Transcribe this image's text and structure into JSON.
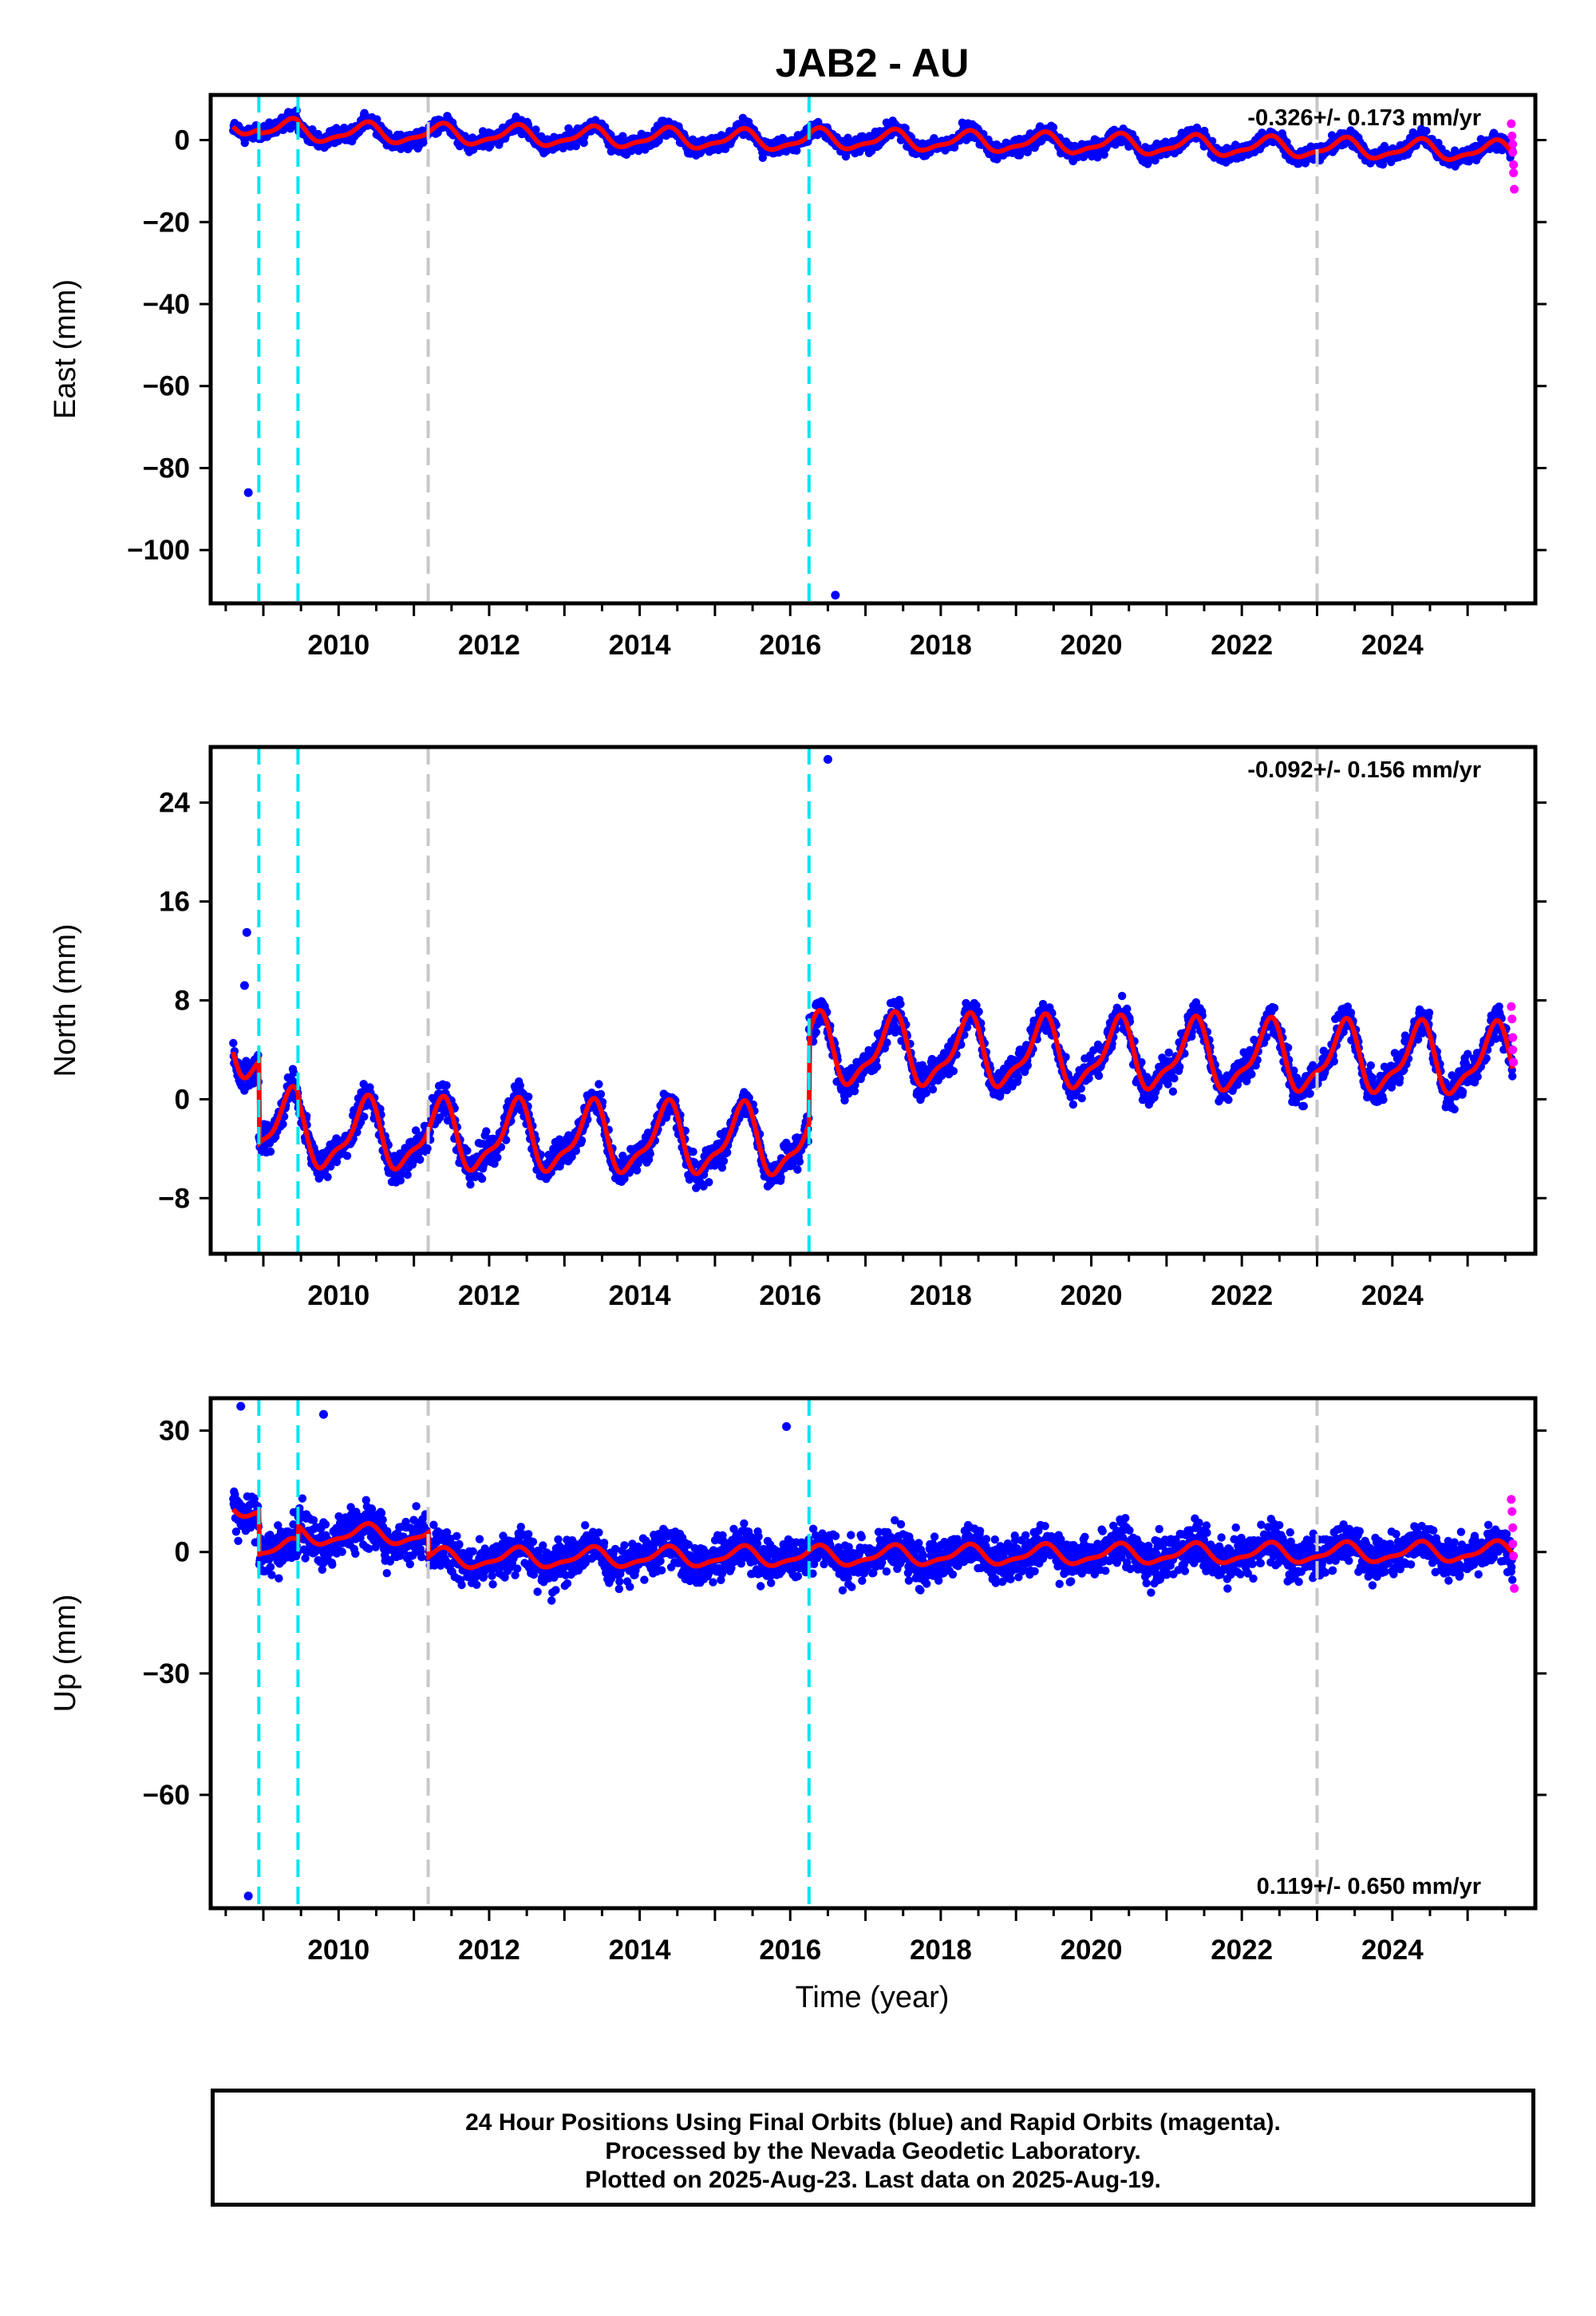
{
  "title": "JAB2 - AU",
  "xlabel": "Time (year)",
  "colors": {
    "final": "#0000ff",
    "rapid": "#ff00ff",
    "model": "#ff0000",
    "equipment_change": "#00e5ee",
    "other_event": "#c8c8c8",
    "frame": "#000000"
  },
  "footer": {
    "line1": "24 Hour Positions Using Final Orbits (blue) and Rapid Orbits (magenta).",
    "line2": "Processed by the Nevada Geodetic Laboratory.",
    "line3": "Plotted on 2025-Aug-23. Last data on 2025-Aug-19."
  },
  "chart_data": [
    {
      "type": "scatter",
      "component": "East",
      "ylabel": "East (mm)",
      "rate_label": "-0.326+/- 0.173 mm/yr",
      "xlim": [
        2008.3,
        2025.9
      ],
      "ylim": [
        -113,
        11
      ],
      "xticks": [
        2010,
        2012,
        2014,
        2016,
        2018,
        2020,
        2022,
        2024
      ],
      "yticks": [
        0,
        -20,
        -40,
        -60,
        -80,
        -100
      ],
      "yticks_text": [
        "0",
        "−20",
        "−40",
        "−60",
        "−80",
        "−100"
      ],
      "equipment_changes": [
        2008.94,
        2009.46,
        2016.25
      ],
      "other_events": [
        2011.19,
        2023.0
      ],
      "outliers": [
        [
          2008.8,
          -86
        ],
        [
          2016.6,
          -111
        ]
      ],
      "rapid": [
        [
          2025.58,
          4
        ],
        [
          2025.59,
          1
        ],
        [
          2025.6,
          -1
        ],
        [
          2025.6,
          -3
        ],
        [
          2025.61,
          -6
        ],
        [
          2025.61,
          -8
        ],
        [
          2025.62,
          -12
        ]
      ],
      "model": {
        "segments": [
          [
            2008.6,
            2008.94,
            1.0
          ],
          [
            2008.94,
            2009.46,
            0.0
          ],
          [
            2009.46,
            2016.25,
            -0.5
          ],
          [
            2016.25,
            2025.6,
            0.0
          ]
        ],
        "rate": -0.326,
        "amplitude": 2.2,
        "noise": 2.4
      }
    },
    {
      "type": "scatter",
      "component": "North",
      "ylabel": "North (mm)",
      "rate_label": "-0.092+/- 0.156 mm/yr",
      "xlim": [
        2008.3,
        2025.9
      ],
      "ylim": [
        -12.5,
        28.5
      ],
      "xticks": [
        2010,
        2012,
        2014,
        2016,
        2018,
        2020,
        2022,
        2024
      ],
      "yticks": [
        24,
        16,
        8,
        0,
        -8
      ],
      "yticks_text": [
        "24",
        "16",
        "8",
        "0",
        "−8"
      ],
      "equipment_changes": [
        2008.94,
        2009.46,
        2016.25
      ],
      "other_events": [
        2011.19,
        2023.0
      ],
      "outliers": [
        [
          2016.5,
          27.5
        ],
        [
          2008.78,
          13.5
        ],
        [
          2008.75,
          9.2
        ]
      ],
      "rapid": [
        [
          2025.58,
          7.5
        ],
        [
          2025.59,
          6.5
        ],
        [
          2025.6,
          5
        ],
        [
          2025.6,
          4
        ],
        [
          2025.61,
          3
        ]
      ],
      "model": {
        "segments": [
          [
            2008.6,
            2008.94,
            3.6
          ],
          [
            2008.94,
            2009.46,
            -3.0
          ],
          [
            2009.46,
            2016.25,
            -3.6
          ],
          [
            2016.25,
            2025.6,
            3.8
          ]
        ],
        "rate": -0.092,
        "amplitude": 2.6,
        "noise": 1.6
      }
    },
    {
      "type": "scatter",
      "component": "Up",
      "ylabel": "Up (mm)",
      "rate_label": "0.119+/- 0.650 mm/yr",
      "xlim": [
        2008.3,
        2025.9
      ],
      "ylim": [
        -88,
        38
      ],
      "xticks": [
        2010,
        2012,
        2014,
        2016,
        2018,
        2020,
        2022,
        2024
      ],
      "yticks": [
        30,
        0,
        -30,
        -60
      ],
      "yticks_text": [
        "30",
        "0",
        "−30",
        "−60"
      ],
      "equipment_changes": [
        2008.94,
        2009.46,
        2016.25
      ],
      "other_events": [
        2011.19,
        2023.0
      ],
      "outliers": [
        [
          2008.7,
          36
        ],
        [
          2008.8,
          -85
        ],
        [
          2015.95,
          31
        ],
        [
          2009.8,
          34
        ]
      ],
      "rapid": [
        [
          2025.58,
          13
        ],
        [
          2025.59,
          10
        ],
        [
          2025.6,
          6
        ],
        [
          2025.6,
          2
        ],
        [
          2025.61,
          -1
        ],
        [
          2025.62,
          -9
        ]
      ],
      "model": {
        "segments": [
          [
            2008.6,
            2008.94,
            12.0
          ],
          [
            2008.94,
            2009.46,
            1.5
          ],
          [
            2009.46,
            2011.19,
            5.0
          ],
          [
            2011.19,
            2016.25,
            -1.0
          ],
          [
            2016.25,
            2025.6,
            -1.0
          ]
        ],
        "rate": 0.119,
        "amplitude": 2.2,
        "noise": 6.5
      }
    }
  ]
}
